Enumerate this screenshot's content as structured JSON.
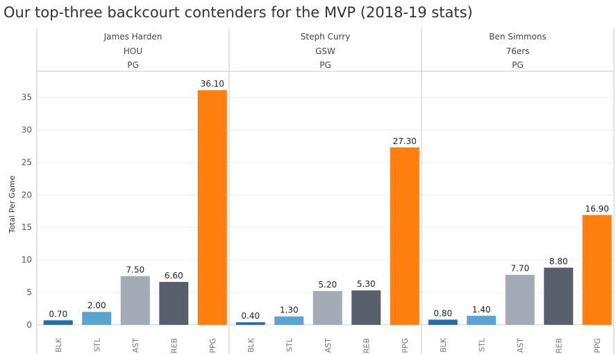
{
  "chart_data": {
    "type": "bar",
    "title": "Our top-three backcourt contenders for the MVP (2018-19 stats)",
    "ylabel": "Total Per Game",
    "xlabel": "",
    "ylim": [
      -1.5,
      39
    ],
    "yticks": [
      0,
      5,
      10,
      15,
      20,
      25,
      30,
      35
    ],
    "categories": [
      "BLK",
      "STL",
      "AST",
      "REB",
      "PPG"
    ],
    "category_colors": {
      "BLK": "#1f6fab",
      "STL": "#5ba3d0",
      "AST": "#a2abb6",
      "REB": "#57606c",
      "PPG": "#ff7f0e"
    },
    "grid": true,
    "panels": [
      {
        "player": "James Harden",
        "team": "HOU",
        "position": "PG",
        "values": [
          0.7,
          2.0,
          7.5,
          6.6,
          36.1
        ],
        "labels": [
          "0.70",
          "2.00",
          "7.50",
          "6.60",
          "36.10"
        ]
      },
      {
        "player": "Steph Curry",
        "team": "GSW",
        "position": "PG",
        "values": [
          0.4,
          1.3,
          5.2,
          5.3,
          27.3
        ],
        "labels": [
          "0.40",
          "1.30",
          "5.20",
          "5.30",
          "27.30"
        ]
      },
      {
        "player": "Ben Simmons",
        "team": "76ers",
        "position": "PG",
        "values": [
          0.8,
          1.4,
          7.7,
          8.8,
          16.9
        ],
        "labels": [
          "0.80",
          "1.40",
          "7.70",
          "8.80",
          "16.90"
        ]
      }
    ]
  }
}
